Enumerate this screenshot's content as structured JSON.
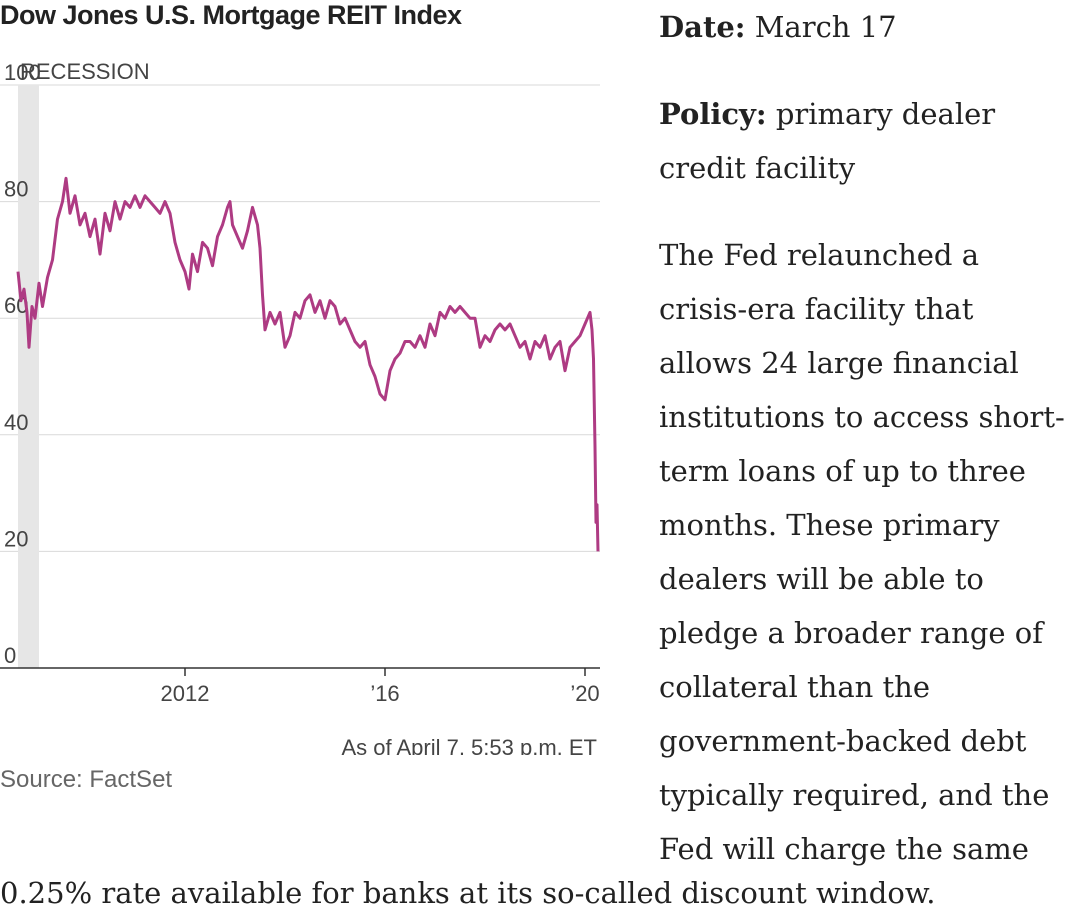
{
  "chart_data": {
    "type": "line",
    "title": "Dow Jones U.S. Mortgage REIT Index",
    "ylim": [
      0,
      100
    ],
    "y_ticks": [
      "100",
      "80",
      "60",
      "40",
      "20",
      "0"
    ],
    "x_ticks": [
      {
        "label": "2012",
        "x": 2012.0
      },
      {
        "label": "’16",
        "x": 2016.0
      },
      {
        "label": "’20",
        "x": 2020.0
      }
    ],
    "xlim": [
      2008.3,
      2020.3
    ],
    "shaded_region": {
      "label": "RECESSION",
      "start": 2008.66,
      "end": 2009.08
    },
    "series": [
      {
        "color": "#ae3b83",
        "points": [
          [
            2008.66,
            68
          ],
          [
            2008.72,
            63
          ],
          [
            2008.78,
            65
          ],
          [
            2008.84,
            61
          ],
          [
            2008.88,
            55
          ],
          [
            2008.94,
            62
          ],
          [
            2009.0,
            60
          ],
          [
            2009.08,
            66
          ],
          [
            2009.15,
            62
          ],
          [
            2009.25,
            67
          ],
          [
            2009.35,
            70
          ],
          [
            2009.45,
            77
          ],
          [
            2009.55,
            80
          ],
          [
            2009.62,
            84
          ],
          [
            2009.7,
            78
          ],
          [
            2009.8,
            81
          ],
          [
            2009.9,
            76
          ],
          [
            2010.0,
            78
          ],
          [
            2010.1,
            74
          ],
          [
            2010.2,
            77
          ],
          [
            2010.3,
            71
          ],
          [
            2010.4,
            78
          ],
          [
            2010.5,
            75
          ],
          [
            2010.6,
            80
          ],
          [
            2010.7,
            77
          ],
          [
            2010.8,
            80
          ],
          [
            2010.9,
            79
          ],
          [
            2011.0,
            81
          ],
          [
            2011.1,
            79
          ],
          [
            2011.2,
            81
          ],
          [
            2011.3,
            80
          ],
          [
            2011.4,
            79
          ],
          [
            2011.5,
            78
          ],
          [
            2011.6,
            80
          ],
          [
            2011.7,
            78
          ],
          [
            2011.8,
            73
          ],
          [
            2011.9,
            70
          ],
          [
            2012.0,
            68
          ],
          [
            2012.08,
            65
          ],
          [
            2012.15,
            71
          ],
          [
            2012.25,
            68
          ],
          [
            2012.35,
            73
          ],
          [
            2012.45,
            72
          ],
          [
            2012.55,
            69
          ],
          [
            2012.65,
            74
          ],
          [
            2012.75,
            76
          ],
          [
            2012.85,
            79
          ],
          [
            2012.9,
            80
          ],
          [
            2012.95,
            76
          ],
          [
            2013.05,
            74
          ],
          [
            2013.15,
            72
          ],
          [
            2013.25,
            75
          ],
          [
            2013.35,
            79
          ],
          [
            2013.45,
            76
          ],
          [
            2013.5,
            72
          ],
          [
            2013.55,
            64
          ],
          [
            2013.6,
            58
          ],
          [
            2013.7,
            61
          ],
          [
            2013.8,
            59
          ],
          [
            2013.9,
            61
          ],
          [
            2014.0,
            55
          ],
          [
            2014.1,
            57
          ],
          [
            2014.2,
            61
          ],
          [
            2014.3,
            60
          ],
          [
            2014.4,
            63
          ],
          [
            2014.5,
            64
          ],
          [
            2014.6,
            61
          ],
          [
            2014.7,
            63
          ],
          [
            2014.8,
            60
          ],
          [
            2014.9,
            63
          ],
          [
            2015.0,
            62
          ],
          [
            2015.1,
            59
          ],
          [
            2015.2,
            60
          ],
          [
            2015.3,
            58
          ],
          [
            2015.4,
            56
          ],
          [
            2015.5,
            55
          ],
          [
            2015.6,
            56
          ],
          [
            2015.7,
            52
          ],
          [
            2015.8,
            50
          ],
          [
            2015.9,
            47
          ],
          [
            2016.0,
            46
          ],
          [
            2016.1,
            51
          ],
          [
            2016.2,
            53
          ],
          [
            2016.3,
            54
          ],
          [
            2016.4,
            56
          ],
          [
            2016.5,
            56
          ],
          [
            2016.6,
            55
          ],
          [
            2016.7,
            57
          ],
          [
            2016.8,
            55
          ],
          [
            2016.9,
            59
          ],
          [
            2017.0,
            57
          ],
          [
            2017.1,
            61
          ],
          [
            2017.2,
            60
          ],
          [
            2017.3,
            62
          ],
          [
            2017.4,
            61
          ],
          [
            2017.5,
            62
          ],
          [
            2017.6,
            61
          ],
          [
            2017.7,
            60
          ],
          [
            2017.8,
            60
          ],
          [
            2017.9,
            55
          ],
          [
            2018.0,
            57
          ],
          [
            2018.1,
            56
          ],
          [
            2018.2,
            58
          ],
          [
            2018.3,
            59
          ],
          [
            2018.4,
            58
          ],
          [
            2018.5,
            59
          ],
          [
            2018.6,
            57
          ],
          [
            2018.7,
            55
          ],
          [
            2018.8,
            56
          ],
          [
            2018.9,
            53
          ],
          [
            2019.0,
            56
          ],
          [
            2019.1,
            55
          ],
          [
            2019.2,
            57
          ],
          [
            2019.3,
            53
          ],
          [
            2019.4,
            55
          ],
          [
            2019.5,
            56
          ],
          [
            2019.6,
            51
          ],
          [
            2019.7,
            55
          ],
          [
            2019.8,
            56
          ],
          [
            2019.9,
            57
          ],
          [
            2020.0,
            59
          ],
          [
            2020.05,
            60
          ],
          [
            2020.1,
            61
          ],
          [
            2020.14,
            58
          ],
          [
            2020.17,
            53
          ],
          [
            2020.2,
            38
          ],
          [
            2020.22,
            25
          ],
          [
            2020.24,
            28
          ],
          [
            2020.26,
            20
          ]
        ]
      }
    ],
    "as_of": "As of April 7, 5:53 p.m. ET",
    "source": "Source: FactSet"
  },
  "sidebar": {
    "date_label": "Date:",
    "date_value": "March 17",
    "policy_label": "Policy:",
    "policy_value": "primary dealer credit facility",
    "body": "The Fed relaunched a crisis-era facility that allows 24 large financial institutions to access short-term loans of up to three months. These primary dealers will be able to pledge a broader range of collateral than the government-backed debt typically required, and the Fed will charge the same"
  },
  "bottom_text": "0.25% rate available for banks at its so-called discount window."
}
